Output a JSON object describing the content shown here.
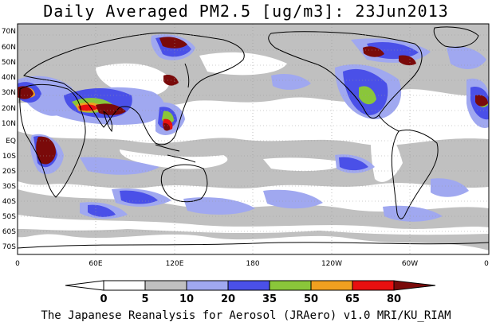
{
  "title": "Daily Averaged PM2.5 [ug/m3]: 23Jun2013",
  "footer": "The Japanese Reanalysis for Aerosol (JRAero) v1.0 MRI/KU_RIAM",
  "lat_labels": [
    "70N",
    "60N",
    "50N",
    "40N",
    "30N",
    "20N",
    "10N",
    "EQ",
    "10S",
    "20S",
    "30S",
    "40S",
    "50S",
    "60S",
    "70S"
  ],
  "lon_labels": [
    "0",
    "60E",
    "120E",
    "180",
    "120W",
    "60W",
    "0"
  ],
  "colorbar": {
    "labels": [
      "0",
      "5",
      "10",
      "20",
      "35",
      "50",
      "65",
      "80"
    ],
    "colors": [
      "#ffffff",
      "#ffffff",
      "#c0c0c0",
      "#a0a8f0",
      "#4a50e8",
      "#8ac63a",
      "#f0a020",
      "#e81010",
      "#7a0a0a"
    ]
  },
  "map": {
    "land_color": "#ffffff",
    "ocean_color": "#ffffff",
    "grid": true,
    "level_colors": {
      "gray": "#c0c0c0",
      "lightblue": "#a0a8f0",
      "blue": "#4a50e8",
      "green": "#8ac63a",
      "orange": "#f0a020",
      "red": "#e81010",
      "darkred": "#7a0a0a"
    }
  }
}
